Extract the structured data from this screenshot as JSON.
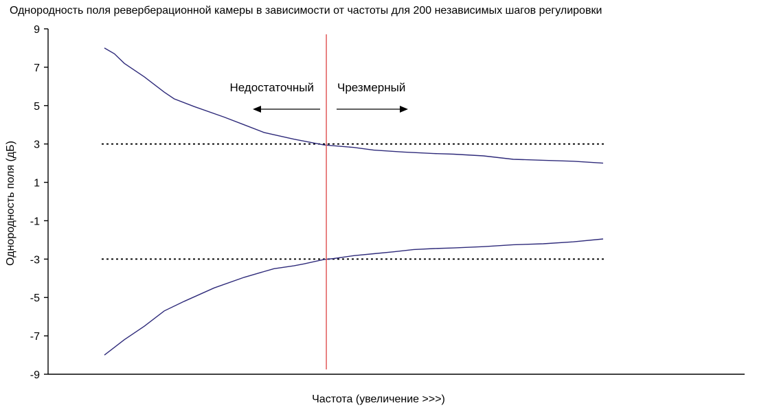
{
  "chart_data": {
    "type": "line",
    "title": "Однородность поля реверберационной камеры в зависимости от частоты для 200 независимых шагов регулировки",
    "xlabel": "Частота (увеличение >>>)",
    "ylabel": "Однородность поля (дБ)",
    "ylim": [
      -9,
      9
    ],
    "xlim": [
      0,
      1
    ],
    "yticks": [
      "9",
      "7",
      "5",
      "3",
      "1",
      "-1",
      "-3",
      "-5",
      "-7",
      "-9"
    ],
    "ytick_values": [
      9,
      7,
      5,
      3,
      1,
      -1,
      -3,
      -5,
      -7,
      -9
    ],
    "grid": false,
    "legend": "none",
    "series": [
      {
        "color": "#2e2a7a",
        "x": [
          0.0,
          0.02,
          0.04,
          0.08,
          0.12,
          0.14,
          0.18,
          0.24,
          0.28,
          0.32,
          0.38,
          0.44,
          0.5,
          0.54,
          0.6,
          0.66,
          0.7,
          0.76,
          0.82,
          0.88,
          0.94,
          1.0
        ],
        "y": [
          8.0,
          7.7,
          7.2,
          6.5,
          5.7,
          5.35,
          4.95,
          4.4,
          4.0,
          3.6,
          3.25,
          2.95,
          2.82,
          2.68,
          2.58,
          2.5,
          2.47,
          2.38,
          2.2,
          2.15,
          2.1,
          2.0
        ]
      },
      {
        "color": "#2e2a7a",
        "x": [
          0.0,
          0.04,
          0.08,
          0.12,
          0.16,
          0.22,
          0.28,
          0.34,
          0.38,
          0.4,
          0.44,
          0.46,
          0.5,
          0.54,
          0.58,
          0.62,
          0.66,
          0.7,
          0.76,
          0.82,
          0.88,
          0.94,
          1.0
        ],
        "y": [
          -8.0,
          -7.2,
          -6.5,
          -5.7,
          -5.2,
          -4.5,
          -3.95,
          -3.5,
          -3.35,
          -3.25,
          -3.02,
          -2.97,
          -2.82,
          -2.72,
          -2.62,
          -2.5,
          -2.45,
          -2.42,
          -2.35,
          -2.25,
          -2.2,
          -2.1,
          -1.95
        ]
      }
    ],
    "reference_lines": [
      {
        "y": 3,
        "style": "dotted",
        "color": "#000000"
      },
      {
        "y": -3,
        "style": "dotted",
        "color": "#000000"
      }
    ],
    "vertical_line": {
      "x": 0.445,
      "color": "#e15a5a"
    },
    "annotations": [
      {
        "text": "Недостаточный",
        "arrow": "left"
      },
      {
        "text": "Чрезмерный",
        "arrow": "right"
      }
    ]
  }
}
